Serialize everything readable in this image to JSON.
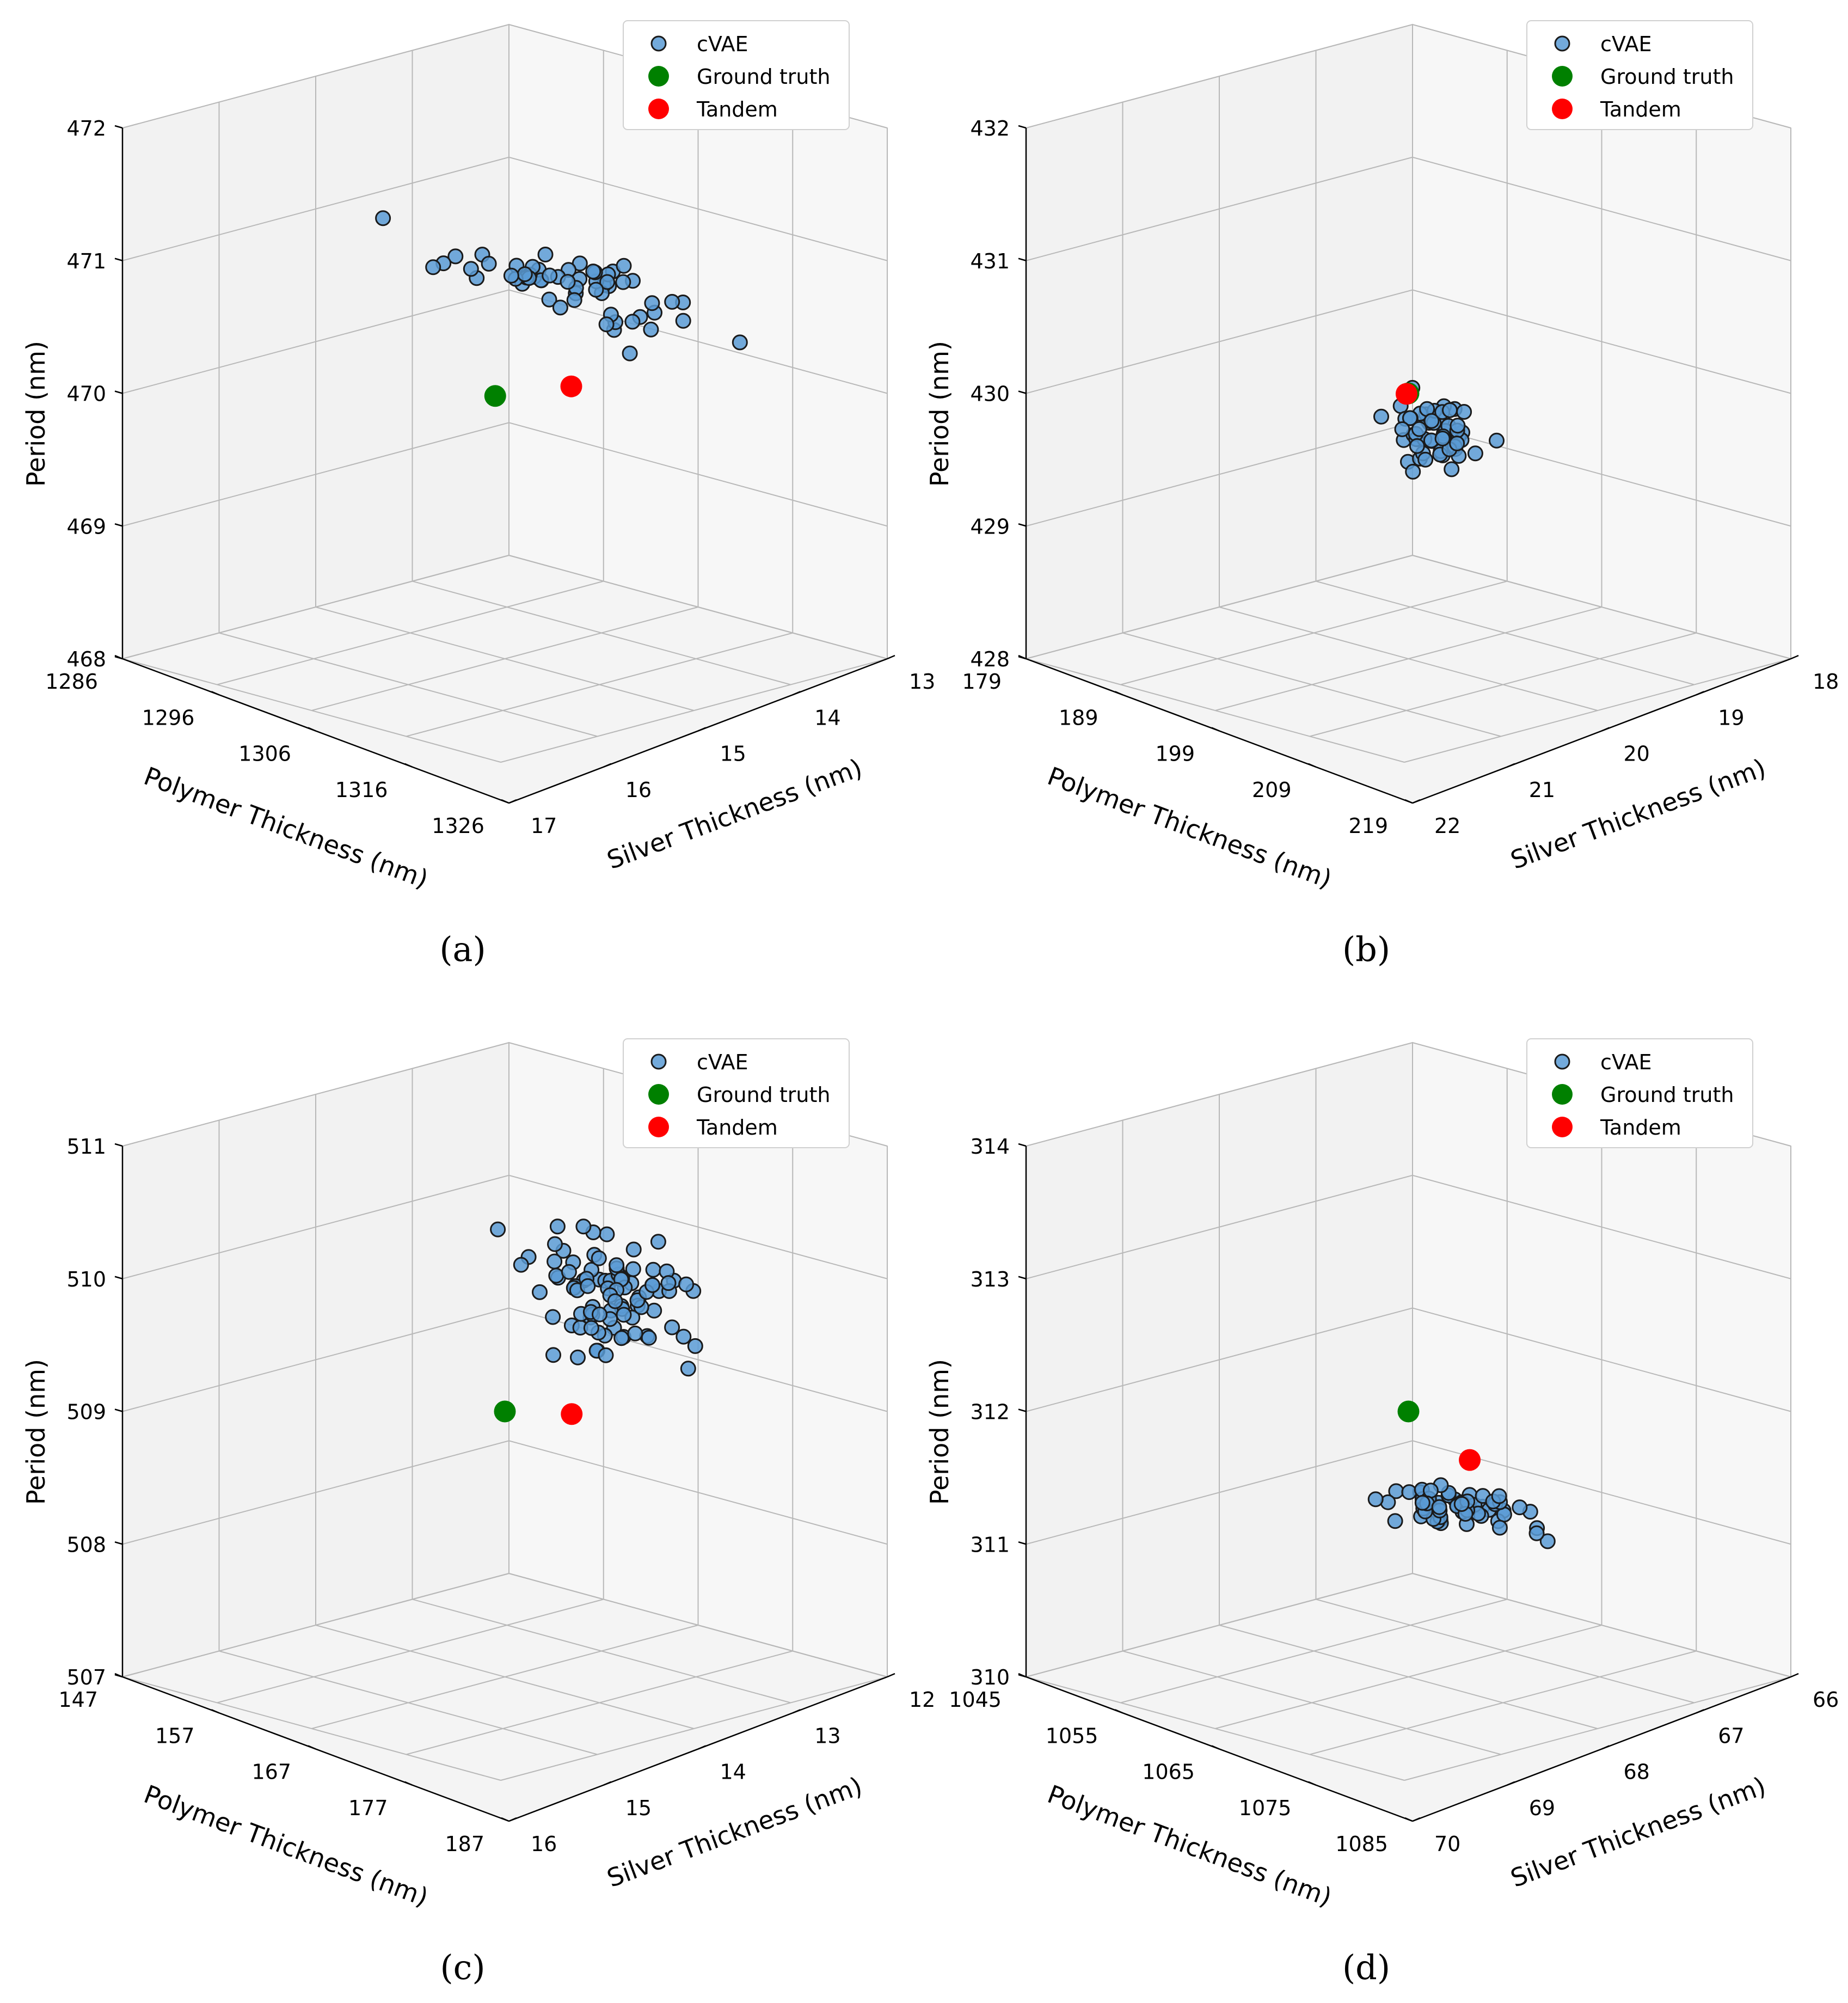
{
  "chart_data": [
    {
      "type": "scatter",
      "projection": "3d",
      "caption": "(a)",
      "xlabel": "Polymer Thickness (nm)",
      "ylabel": "Silver Thickness (nm)",
      "zlabel": "Period (nm)",
      "xlim": [
        1286,
        1326
      ],
      "ylim": [
        17,
        13
      ],
      "zlim": [
        468,
        472
      ],
      "xticks": [
        "1286",
        "1296",
        "1306",
        "1316",
        "1326"
      ],
      "yticks": [
        "17",
        "16",
        "15",
        "14",
        "13"
      ],
      "zticks": [
        "468",
        "469",
        "470",
        "471",
        "472"
      ],
      "legend_position": "top-right",
      "legend": [
        "cVAE",
        "Ground truth",
        "Tandem"
      ],
      "colors": {
        "cvae": "#5b9bd5",
        "ground_truth": "#008000",
        "tandem": "#ff0000"
      },
      "series": [
        {
          "name": "cVAE",
          "center": [
            1297,
            14.8,
            470.6
          ],
          "spread": [
            1.4,
            0.7,
            0.08
          ],
          "count": 60
        },
        {
          "name": "Ground truth",
          "point": [
            1307,
            15.0,
            470.0
          ]
        },
        {
          "name": "Tandem",
          "point": [
            1305,
            15.6,
            470.15
          ]
        }
      ]
    },
    {
      "type": "scatter",
      "projection": "3d",
      "caption": "(b)",
      "xlabel": "Polymer Thickness (nm)",
      "ylabel": "Silver Thickness (nm)",
      "zlabel": "Period (nm)",
      "xlim": [
        179,
        219
      ],
      "ylim": [
        22,
        18
      ],
      "zlim": [
        428,
        432
      ],
      "xticks": [
        "179",
        "189",
        "199",
        "209",
        "219"
      ],
      "yticks": [
        "22",
        "21",
        "20",
        "19",
        "18"
      ],
      "zticks": [
        "428",
        "429",
        "430",
        "431",
        "432"
      ],
      "legend_position": "top-right",
      "legend": [
        "cVAE",
        "Ground truth",
        "Tandem"
      ],
      "colors": {
        "cvae": "#5b9bd5",
        "ground_truth": "#008000",
        "tandem": "#ff0000"
      },
      "series": [
        {
          "name": "cVAE",
          "center": [
            200,
            20.4,
            429.8
          ],
          "spread": [
            1.0,
            0.2,
            0.15
          ],
          "count": 60
        },
        {
          "name": "Ground truth",
          "point": [
            199,
            20.0,
            430.0
          ]
        },
        {
          "name": "Tandem",
          "point": [
            199.2,
            20.0,
            430.0
          ]
        }
      ]
    },
    {
      "type": "scatter",
      "projection": "3d",
      "caption": "(c)",
      "xlabel": "Polymer Thickness (nm)",
      "ylabel": "Silver Thickness (nm)",
      "zlabel": "Period (nm)",
      "xlim": [
        147,
        187
      ],
      "ylim": [
        16,
        12
      ],
      "zlim": [
        507,
        511
      ],
      "xticks": [
        "147",
        "157",
        "167",
        "177",
        "187"
      ],
      "yticks": [
        "16",
        "15",
        "14",
        "13",
        "12"
      ],
      "zticks": [
        "507",
        "508",
        "509",
        "510",
        "511"
      ],
      "legend_position": "top-right",
      "legend": [
        "cVAE",
        "Ground truth",
        "Tandem"
      ],
      "colors": {
        "cvae": "#5b9bd5",
        "ground_truth": "#008000",
        "tandem": "#ff0000"
      },
      "series": [
        {
          "name": "cVAE",
          "center": [
            156,
            14.0,
            509.7
          ],
          "spread": [
            2.5,
            0.35,
            0.25
          ],
          "count": 90
        },
        {
          "name": "Ground truth",
          "point": [
            167,
            14.0,
            509.0
          ]
        },
        {
          "name": "Tandem",
          "point": [
            164,
            14.4,
            509.0
          ]
        }
      ]
    },
    {
      "type": "scatter",
      "projection": "3d",
      "caption": "(d)",
      "xlabel": "Polymer Thickness (nm)",
      "ylabel": "Silver Thickness (nm)",
      "zlabel": "Period (nm)",
      "xlim": [
        1045,
        1085
      ],
      "ylim": [
        70,
        66
      ],
      "zlim": [
        310,
        314
      ],
      "xticks": [
        "1045",
        "1055",
        "1065",
        "1075",
        "1085"
      ],
      "yticks": [
        "70",
        "69",
        "68",
        "67",
        "66"
      ],
      "zticks": [
        "310",
        "311",
        "312",
        "313",
        "314"
      ],
      "legend_position": "top-right",
      "legend": [
        "cVAE",
        "Ground truth",
        "Tandem"
      ],
      "colors": {
        "cvae": "#5b9bd5",
        "ground_truth": "#008000",
        "tandem": "#ff0000"
      },
      "series": [
        {
          "name": "cVAE",
          "center": [
            1067,
            68.6,
            311.45
          ],
          "spread": [
            1.7,
            0.45,
            0.05
          ],
          "count": 60
        },
        {
          "name": "Ground truth",
          "point": [
            1065,
            68.0,
            312.0
          ]
        },
        {
          "name": "Tandem",
          "point": [
            1066,
            68.75,
            311.8
          ]
        }
      ]
    }
  ]
}
